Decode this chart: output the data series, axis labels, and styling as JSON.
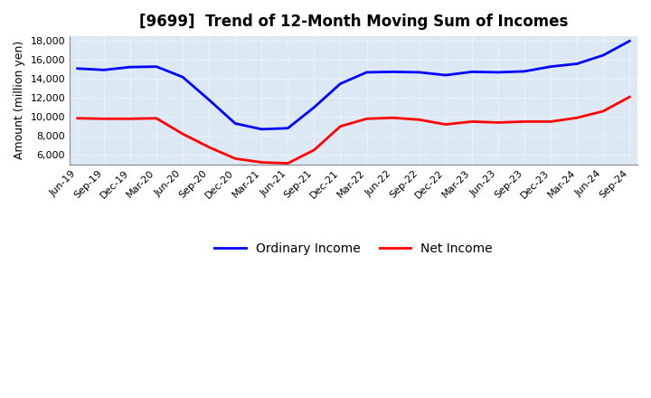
{
  "title": "[9699]  Trend of 12-Month Moving Sum of Incomes",
  "ylabel": "Amount (million yen)",
  "ylim": [
    5000,
    18500
  ],
  "yticks": [
    6000,
    8000,
    10000,
    12000,
    14000,
    16000,
    18000
  ],
  "plot_bg_color": "#dce9f5",
  "fig_bg_color": "#ffffff",
  "grid_color": "#ffffff",
  "labels": [
    "Jun-19",
    "Sep-19",
    "Dec-19",
    "Mar-20",
    "Jun-20",
    "Sep-20",
    "Dec-20",
    "Mar-21",
    "Jun-21",
    "Sep-21",
    "Dec-21",
    "Mar-22",
    "Jun-22",
    "Sep-22",
    "Dec-22",
    "Mar-23",
    "Jun-23",
    "Sep-23",
    "Dec-23",
    "Mar-24",
    "Jun-24",
    "Sep-24"
  ],
  "ordinary_income": [
    15100,
    14950,
    15250,
    15300,
    14200,
    11800,
    9300,
    8700,
    8800,
    11000,
    13500,
    14700,
    14750,
    14700,
    14400,
    14750,
    14700,
    14800,
    15300,
    15600,
    16500,
    18000
  ],
  "net_income": [
    9850,
    9800,
    9800,
    9850,
    8200,
    6800,
    5600,
    5200,
    5100,
    6500,
    9000,
    9800,
    9900,
    9700,
    9200,
    9500,
    9400,
    9500,
    9500,
    9900,
    10600,
    12100
  ],
  "ordinary_income_color": "#0000ff",
  "net_income_color": "#ff0000",
  "line_width": 2.0,
  "legend_ordinary": "Ordinary Income",
  "legend_net": "Net Income",
  "title_fontsize": 12,
  "axis_label_fontsize": 9,
  "tick_fontsize": 8,
  "legend_fontsize": 10
}
